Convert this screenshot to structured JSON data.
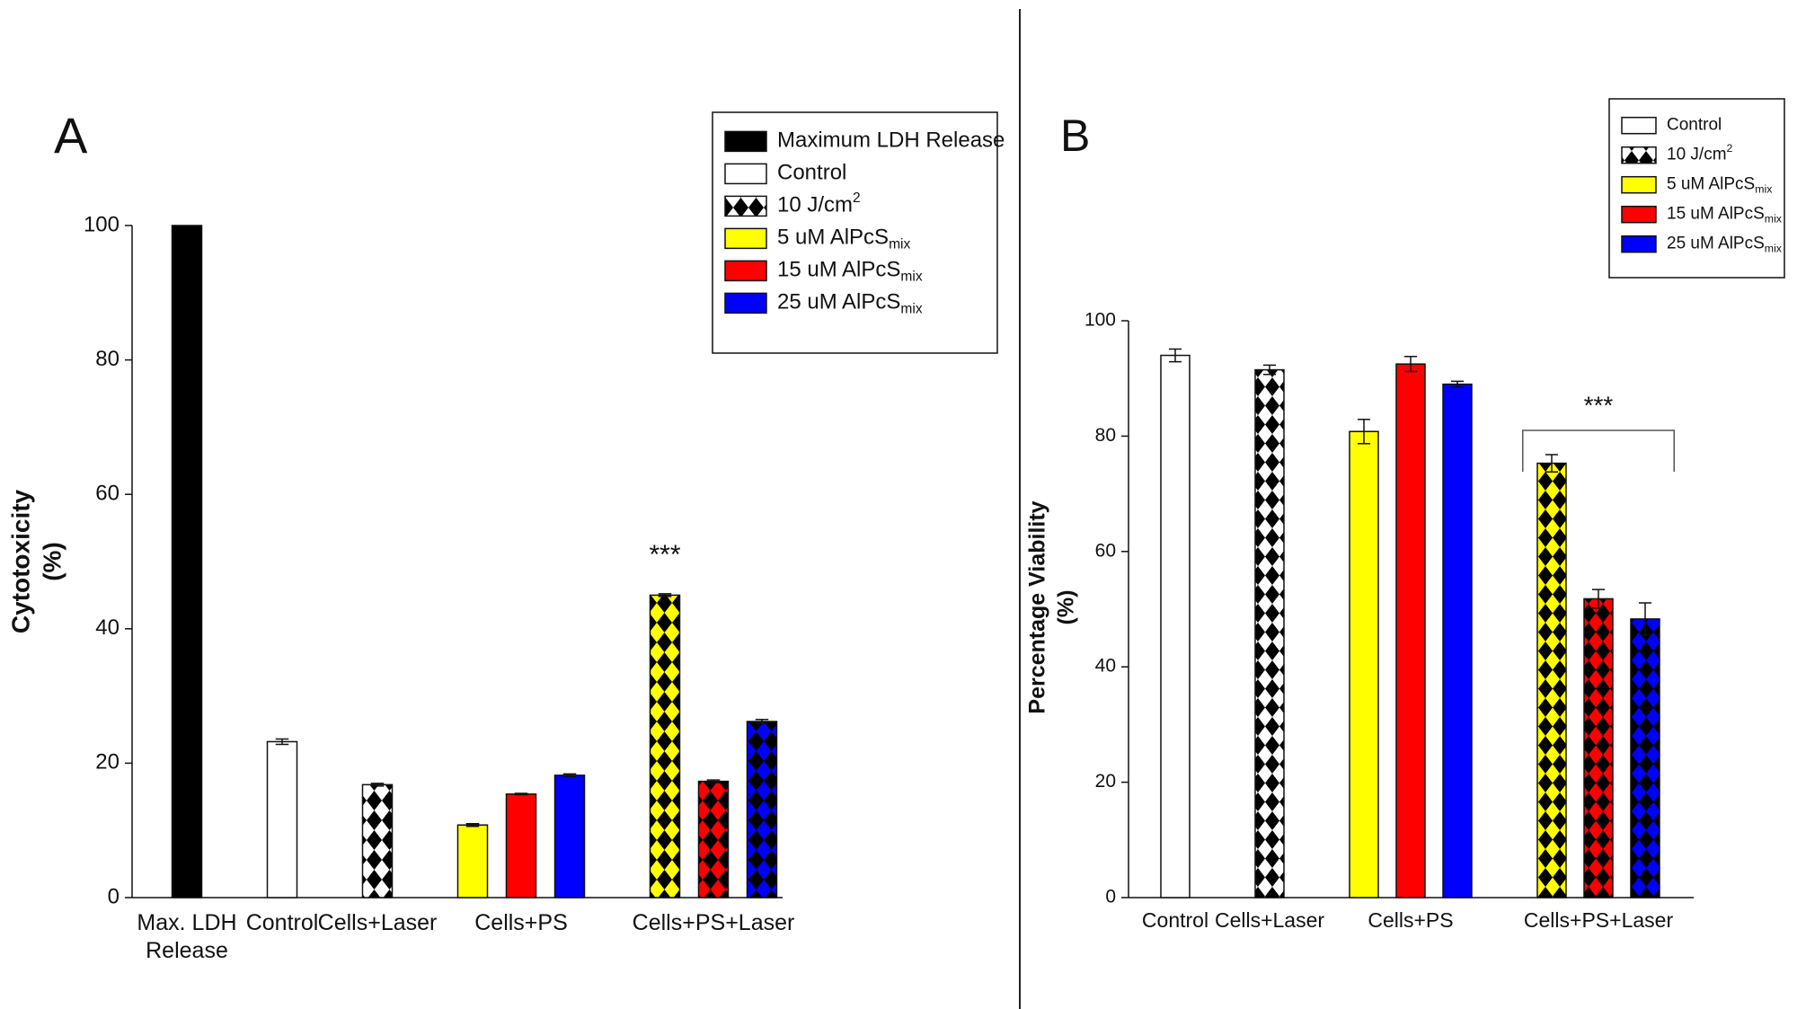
{
  "chart_data": [
    {
      "type": "bar",
      "panel_label": "A",
      "ylabel": [
        "Cytotoxicity",
        "(%)"
      ],
      "categories": [
        "Max. LDH Release",
        "Control",
        "Cells+Laser",
        "Cells+PS",
        "Cells+PS+Laser"
      ],
      "ylim": [
        0,
        100
      ],
      "yticks": [
        0,
        20,
        40,
        60,
        80,
        100
      ],
      "legend": "upper right",
      "annotation": "***",
      "annotation_color": "#e8262a",
      "annotation_bracket": false,
      "series": [
        {
          "name": "Maximum LDH Release",
          "color": "#000000",
          "patterned": [
            false,
            false,
            false,
            false,
            false
          ],
          "values": [
            100,
            null,
            null,
            null,
            null
          ],
          "errors": [
            null,
            null,
            null,
            null,
            null
          ]
        },
        {
          "name": "Control",
          "color": "#ffffff",
          "patterned": [
            false,
            false,
            false,
            false,
            false
          ],
          "values": [
            null,
            23.2,
            null,
            null,
            null
          ],
          "errors": [
            null,
            0.4,
            null,
            null,
            null
          ]
        },
        {
          "name": "10 J/cm",
          "superscript": "2",
          "color": "#ffffff",
          "patterned": [
            true,
            true,
            true,
            true,
            true
          ],
          "values": [
            null,
            null,
            16.8,
            null,
            null
          ],
          "errors": [
            null,
            null,
            0.2,
            null,
            null
          ]
        },
        {
          "name": "5 uM AlPcS",
          "subscript": "mix",
          "color": "#ffff00",
          "patterned": [
            false,
            false,
            false,
            false,
            true
          ],
          "values": [
            null,
            null,
            null,
            10.8,
            45.0
          ],
          "errors": [
            null,
            null,
            null,
            0.2,
            0.2
          ]
        },
        {
          "name": "15 uM AlPcS",
          "subscript": "mix",
          "color": "#ff0000",
          "patterned": [
            false,
            false,
            false,
            false,
            true
          ],
          "values": [
            null,
            null,
            null,
            15.4,
            17.3
          ],
          "errors": [
            null,
            null,
            null,
            0.1,
            0.2
          ]
        },
        {
          "name": "25 uM AlPcS",
          "subscript": "mix",
          "color": "#0000ff",
          "patterned": [
            false,
            false,
            false,
            false,
            true
          ],
          "values": [
            null,
            null,
            null,
            18.2,
            26.2
          ],
          "errors": [
            null,
            null,
            null,
            0.2,
            0.3
          ]
        }
      ]
    },
    {
      "type": "bar",
      "panel_label": "B",
      "ylabel": [
        "Percentage Viability",
        "(%)"
      ],
      "categories": [
        "Control",
        "Cells+Laser",
        "Cells+PS",
        "Cells+PS+Laser"
      ],
      "ylim": [
        0,
        100
      ],
      "yticks": [
        0,
        20,
        40,
        60,
        80,
        100
      ],
      "legend": "upper right",
      "annotation": "***",
      "annotation_color": "#e8262a",
      "annotation_bracket": true,
      "series": [
        {
          "name": "Control",
          "color": "#ffffff",
          "patterned": [
            false,
            false,
            false,
            false
          ],
          "values": [
            94.0,
            null,
            null,
            null
          ],
          "errors": [
            1.1,
            null,
            null,
            null
          ]
        },
        {
          "name": "10 J/cm",
          "superscript": "2",
          "color": "#ffffff",
          "patterned": [
            true,
            true,
            true,
            true
          ],
          "values": [
            null,
            91.5,
            null,
            null
          ],
          "errors": [
            null,
            0.8,
            null,
            null
          ]
        },
        {
          "name": "5 uM AlPcS",
          "subscript": "mix",
          "color": "#ffff00",
          "patterned": [
            false,
            false,
            false,
            true
          ],
          "values": [
            null,
            null,
            80.8,
            75.3
          ],
          "errors": [
            null,
            null,
            2.1,
            1.5
          ]
        },
        {
          "name": "15 uM AlPcS",
          "subscript": "mix",
          "color": "#ff0000",
          "patterned": [
            false,
            false,
            false,
            true
          ],
          "values": [
            null,
            null,
            92.5,
            51.8
          ],
          "errors": [
            null,
            null,
            1.3,
            1.6
          ]
        },
        {
          "name": "25 uM AlPcS",
          "subscript": "mix",
          "color": "#0000ff",
          "patterned": [
            false,
            false,
            false,
            true
          ],
          "values": [
            null,
            null,
            89.0,
            48.3
          ],
          "errors": [
            null,
            null,
            0.5,
            2.8
          ]
        }
      ]
    }
  ]
}
